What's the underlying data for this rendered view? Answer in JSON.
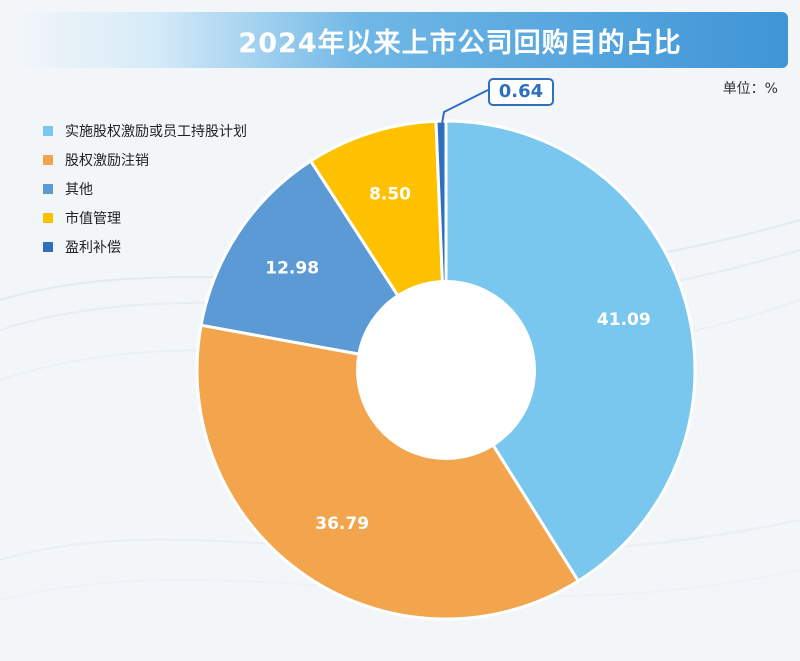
{
  "title": "2024年以来上市公司回购目的占比",
  "unit": "单位：%",
  "colors": {
    "equity_incentive": "#79c7ee",
    "cancellation": "#f2a54c",
    "other": "#5b9ad4",
    "market_value": "#fdc100",
    "profit_compensation": "#2f6fbf"
  },
  "chart_data": {
    "type": "pie",
    "donut": true,
    "categories": [
      "实施股权激励或员工持股计划",
      "股权激励注销",
      "其他",
      "市值管理",
      "盈利补偿"
    ],
    "values": [
      41.09,
      36.79,
      12.98,
      8.5,
      0.64
    ],
    "labels": [
      "41.09",
      "36.79",
      "12.98",
      "8.50",
      "0.64"
    ],
    "legend_position": "top-left"
  }
}
